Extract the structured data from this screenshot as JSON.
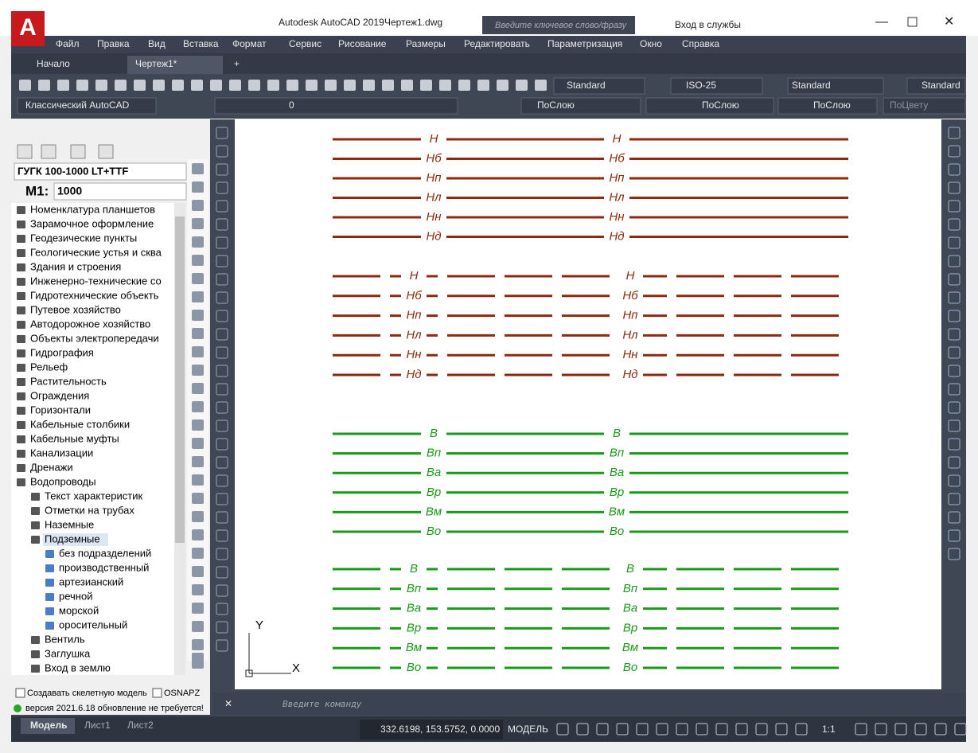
{
  "title_bar": {
    "app": "Autodesk AutoCAD 2019",
    "file": "Чертеж1.dwg",
    "search": "Введите ключевое слово/фразу",
    "login": "Вход в службы"
  },
  "menu": [
    "Файл",
    "Правка",
    "Вид",
    "Вставка",
    "Формат",
    "Сервис",
    "Рисование",
    "Размеры",
    "Редактировать",
    "Параметризация",
    "Окно",
    "Справка"
  ],
  "tabs": [
    "Начало",
    "Чертеж1*"
  ],
  "toolbar": {
    "text_style": "Standard",
    "dim_style": "ISO-25",
    "table_style": "Standard",
    "mleader_style": "Standard",
    "workspace": "Классический AutoCAD",
    "layer": "0",
    "color": "ПоСлою",
    "linetype": "ПоСлою",
    "lineweight": "ПоСлою",
    "plot_style": "ПоЦвету"
  },
  "panel": {
    "library": "ГУГК 100-1000 LT+TTF",
    "scale_label": "M1:",
    "scale": "1000",
    "tree": [
      {
        "label": "Номенклатура планшетов",
        "level": 0
      },
      {
        "label": "Зарамочное оформление",
        "level": 0
      },
      {
        "label": "Геодезические пункты",
        "level": 0
      },
      {
        "label": "Геологические устья и сква",
        "level": 0
      },
      {
        "label": "Здания и строения",
        "level": 0
      },
      {
        "label": "Инженерно-технические со",
        "level": 0
      },
      {
        "label": "Гидротехнические объекть",
        "level": 0
      },
      {
        "label": "Путевое хозяйство",
        "level": 0
      },
      {
        "label": "Автодорожное хозяйство",
        "level": 0
      },
      {
        "label": "Объекты электропередачи",
        "level": 0
      },
      {
        "label": "Гидрография",
        "level": 0
      },
      {
        "label": "Рельеф",
        "level": 0
      },
      {
        "label": "Растительность",
        "level": 0
      },
      {
        "label": "Ограждения",
        "level": 0
      },
      {
        "label": "Горизонтали",
        "level": 0
      },
      {
        "label": "Кабельные столбики",
        "level": 0
      },
      {
        "label": "Кабельные муфты",
        "level": 0
      },
      {
        "label": "Канализации",
        "level": 0
      },
      {
        "label": "Дренажи",
        "level": 0
      },
      {
        "label": "Водопроводы",
        "level": 0
      },
      {
        "label": "Текст характеристик",
        "level": 1
      },
      {
        "label": "Отметки на трубах",
        "level": 1
      },
      {
        "label": "Наземные",
        "level": 1
      },
      {
        "label": "Подземные",
        "level": 1
      },
      {
        "label": "без подразделений",
        "level": 2
      },
      {
        "label": "производственный",
        "level": 2
      },
      {
        "label": "артезианский",
        "level": 2
      },
      {
        "label": "речной",
        "level": 2
      },
      {
        "label": "морской",
        "level": 2
      },
      {
        "label": "оросительный",
        "level": 2
      },
      {
        "label": "Вентиль",
        "level": 1
      },
      {
        "label": "Заглушка",
        "level": 1
      },
      {
        "label": "Вход в землю",
        "level": 1
      }
    ],
    "options": [
      "Создавать скелетную модель",
      "OSNAPZ"
    ],
    "status": "версия 2021.6.18 обновление не требуется!"
  },
  "drawing": {
    "groups": [
      {
        "color": "#8b2a0e",
        "dashed": false,
        "labels": [
          "Н",
          "Нб",
          "Нп",
          "Нл",
          "Нн",
          "Нд"
        ]
      },
      {
        "color": "#8b2a0e",
        "dashed": true,
        "labels": [
          "Н",
          "Нб",
          "Нп",
          "Нл",
          "Нн",
          "Нд"
        ]
      },
      {
        "color": "#1a9a1a",
        "dashed": false,
        "labels": [
          "В",
          "Вп",
          "Ва",
          "Вр",
          "Вм",
          "Во"
        ]
      },
      {
        "color": "#1a9a1a",
        "dashed": true,
        "labels": [
          "В",
          "Вп",
          "Ва",
          "Вр",
          "Вм",
          "Во"
        ]
      }
    ],
    "axis_x": "X",
    "axis_y": "Y"
  },
  "command": {
    "placeholder": "Введите команду"
  },
  "layouts": [
    "Модель",
    "Лист1",
    "Лист2"
  ],
  "status_bar": {
    "coords": "332.6198, 153.5752, 0.0000",
    "space": "МОДЕЛЬ",
    "scale": "1:1"
  }
}
